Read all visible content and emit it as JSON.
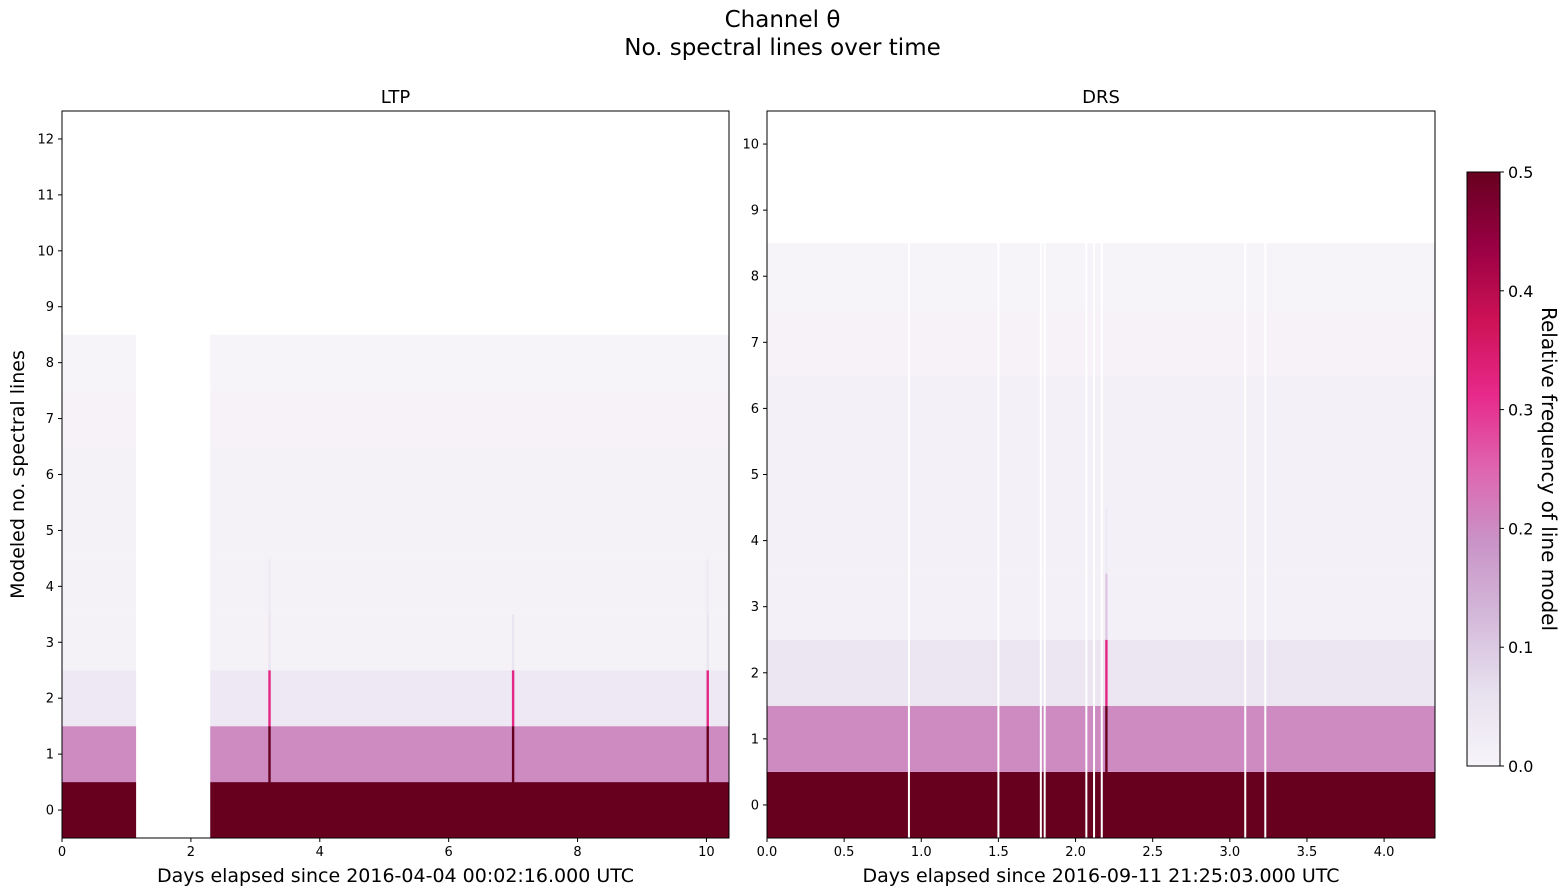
{
  "figure": {
    "title_line1": "Channel θ",
    "title_line2": "No. spectral lines over time"
  },
  "chart_data": [
    {
      "type": "heatmap",
      "title": "LTP",
      "xlabel": "Days elapsed since 2016-04-04 00:02:16.000 UTC",
      "ylabel": "Modeled no. spectral lines",
      "xlim": [
        0,
        10.35
      ],
      "ylim": [
        -0.5,
        12.5
      ],
      "xticks": [
        0,
        2,
        4,
        6,
        8,
        10
      ],
      "yticks": [
        0,
        1,
        2,
        3,
        4,
        5,
        6,
        7,
        8,
        9,
        10,
        11,
        12
      ],
      "data_segments": [
        [
          0,
          1.15
        ],
        [
          2.3,
          10.35
        ]
      ],
      "row_frequency": {
        "0": 0.5,
        "1": 0.2,
        "2": 0.04,
        "3": 0.01,
        "4": 0.01,
        "5": 0.01,
        "6": 0.01,
        "7": 0.005,
        "8": 0.003
      },
      "spikes": [
        {
          "x": 3.22,
          "values": {
            "0": 0.5,
            "1": 0.5,
            "2": 0.32,
            "3": 0.05,
            "4": 0.03
          }
        },
        {
          "x": 7.0,
          "values": {
            "0": 0.5,
            "1": 0.5,
            "2": 0.32,
            "3": 0.05
          }
        },
        {
          "x": 10.02,
          "values": {
            "0": 0.5,
            "1": 0.5,
            "2": 0.32,
            "3": 0.05,
            "4": 0.03
          }
        }
      ]
    },
    {
      "type": "heatmap",
      "title": "DRS",
      "xlabel": "Days elapsed since 2016-09-11 21:25:03.000 UTC",
      "ylabel": "",
      "xlim": [
        0,
        4.33
      ],
      "ylim": [
        -0.5,
        10.5
      ],
      "xticks": [
        0.0,
        0.5,
        1.0,
        1.5,
        2.0,
        2.5,
        3.0,
        3.5,
        4.0
      ],
      "yticks": [
        0,
        1,
        2,
        3,
        4,
        5,
        6,
        7,
        8,
        9,
        10
      ],
      "data_segments": [
        [
          0,
          4.33
        ]
      ],
      "gaps": [
        0.92,
        1.5,
        1.775,
        1.8,
        2.07,
        2.12,
        2.17,
        3.1,
        3.23
      ],
      "row_frequency": {
        "0": 0.5,
        "1": 0.2,
        "2": 0.045,
        "3": 0.012,
        "4": 0.012,
        "5": 0.012,
        "6": 0.012,
        "7": 0.005,
        "8": 0.003
      },
      "spikes": [
        {
          "x": 2.2,
          "values": {
            "0": 0.5,
            "1": 0.5,
            "2": 0.32,
            "3": 0.1,
            "4": 0.03
          }
        }
      ]
    }
  ],
  "colorbar": {
    "label": "Relative frequency of line model",
    "range": [
      0.0,
      0.5
    ],
    "ticks": [
      "0.0",
      "0.1",
      "0.2",
      "0.3",
      "0.4",
      "0.5"
    ],
    "colors": [
      "#f7f4f9",
      "#e7e1ef",
      "#d4b9da",
      "#c994c7",
      "#df65b0",
      "#e7298a",
      "#ce1256",
      "#980043",
      "#67001f"
    ]
  }
}
